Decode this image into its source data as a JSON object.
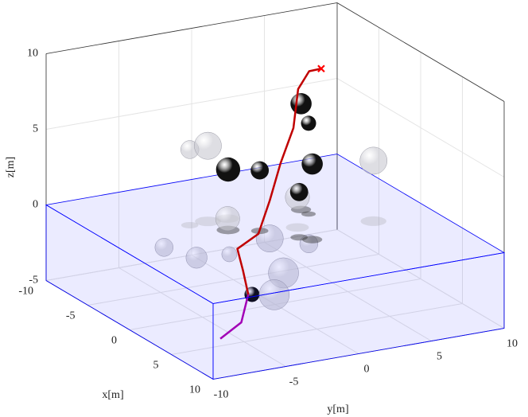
{
  "chart_data": {
    "type": "scatter3d",
    "xlabel": "x[m]",
    "ylabel": "y[m]",
    "zlabel": "z[m]",
    "xlim": [
      -10,
      10
    ],
    "ylim": [
      -10,
      10
    ],
    "zlim": [
      -5,
      10
    ],
    "xticks": [
      -10,
      -5,
      0,
      5,
      10
    ],
    "yticks": [
      -10,
      -5,
      0,
      5,
      10
    ],
    "zticks": [
      -5,
      0,
      5,
      10
    ],
    "grid": true,
    "region": {
      "zlim": [
        -5,
        0
      ],
      "color": "#0000ff"
    },
    "series": [
      {
        "color": "#b000b0",
        "x": [
          8.6,
          7.8,
          4.8
        ],
        "y": [
          -8.7,
          -6.8,
          -4.6
        ],
        "z": [
          -3,
          -2.5,
          -2
        ]
      },
      {
        "color": "#c00000",
        "x": [
          4.8,
          3.3,
          2.1,
          2.7,
          2.5,
          1.7,
          0.1,
          -2.3,
          -2.9,
          -2.5
        ],
        "y": [
          -4.6,
          -4.1,
          -3.8,
          -2.7,
          -1.8,
          -0.6,
          1.2,
          2.9,
          4.0,
          4.6
        ],
        "z": [
          -2,
          -1,
          0,
          1,
          3,
          5,
          6.5,
          8,
          8.8,
          9
        ]
      }
    ],
    "goal": {
      "x": -2.5,
      "y": 4.6,
      "z": 9,
      "color": "#ff0000"
    },
    "obstacle_groups": [
      {
        "color": "#111111",
        "x": [
          -2.3,
          -1.4,
          -1.1,
          -0.1,
          2.7,
          2.0,
          4.9
        ],
        "y": [
          3.1,
          3.1,
          -2.6,
          -1.0,
          1.0,
          0.5,
          -4.4
        ],
        "z": [
          7,
          6,
          4,
          4,
          5,
          3,
          -2
        ],
        "r": [
          0.7,
          0.5,
          0.8,
          0.6,
          0.7,
          0.6,
          0.5
        ]
      },
      {
        "color": "#c8c8d0",
        "x": [
          -2.9,
          -3.0,
          1.5,
          -2.9,
          -1.0,
          -2.5,
          0,
          0.9,
          2.4,
          3.2,
          0.4,
          -2.0
        ],
        "y": [
          -4.2,
          -2.9,
          5.9,
          -1.6,
          0.2,
          -6.2,
          -5.4,
          1.8,
          -0.8,
          -1.9,
          1.3,
          -2.0
        ],
        "z": [
          5,
          5,
          4,
          0,
          -1,
          -1,
          -1,
          -1,
          -2,
          -3,
          2,
          -2
        ],
        "r": [
          0.6,
          0.9,
          0.9,
          0.8,
          0.9,
          0.6,
          0.7,
          0.6,
          1.0,
          1.0,
          0.8,
          0.5
        ]
      }
    ]
  }
}
